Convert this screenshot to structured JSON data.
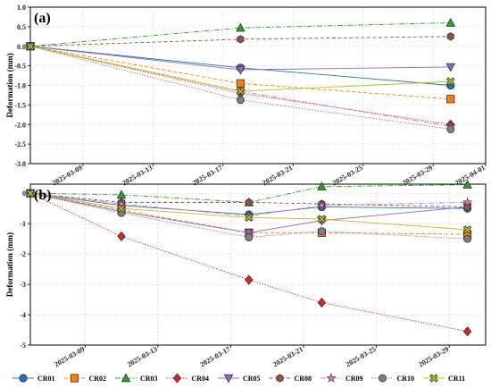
{
  "chart_data": [
    {
      "type": "line",
      "panel_label": "(a)",
      "ylabel": "Deformation (mm)",
      "xlabel": "",
      "ylim": [
        -3.0,
        1.0
      ],
      "yticks": [
        1.0,
        0.5,
        0.0,
        -0.5,
        -1.0,
        -1.5,
        -2.0,
        -2.5,
        -3.0
      ],
      "ytick_labels": [
        "1.0",
        "0.5",
        "0.0",
        "-0.5",
        "-1.0",
        "-1.5",
        "-2.0",
        "-2.5",
        "-3.0"
      ],
      "xlim": [
        "2025-03-06",
        "2025-04-01"
      ],
      "xticks": [
        "2025-03-09",
        "2025-03-13",
        "2025-03-17",
        "2025-03-21",
        "2025-03-25",
        "2025-03-29",
        "2025-04-01"
      ],
      "grid": true,
      "series": [
        {
          "name": "CR01",
          "x": [
            "2025-03-06",
            "2025-03-18",
            "2025-03-30"
          ],
          "y": [
            0.0,
            -0.55,
            -1.0
          ]
        },
        {
          "name": "CR02",
          "x": [
            "2025-03-06",
            "2025-03-18",
            "2025-03-30"
          ],
          "y": [
            0.0,
            -0.95,
            -1.35
          ]
        },
        {
          "name": "CR03",
          "x": [
            "2025-03-06",
            "2025-03-18",
            "2025-03-30"
          ],
          "y": [
            0.0,
            0.47,
            0.6
          ]
        },
        {
          "name": "CR04",
          "x": [
            "2025-03-06",
            "2025-03-18",
            "2025-03-30"
          ],
          "y": [
            0.0,
            -1.2,
            -2.0
          ]
        },
        {
          "name": "CR05",
          "x": [
            "2025-03-06",
            "2025-03-18",
            "2025-03-30"
          ],
          "y": [
            0.0,
            -0.6,
            -0.53
          ]
        },
        {
          "name": "CR08",
          "x": [
            "2025-03-06",
            "2025-03-18",
            "2025-03-30"
          ],
          "y": [
            0.0,
            0.18,
            0.25
          ]
        },
        {
          "name": "CR09",
          "x": [
            "2025-03-06",
            "2025-03-18",
            "2025-03-30"
          ],
          "y": [
            0.0,
            -1.15,
            -2.05
          ]
        },
        {
          "name": "CR10",
          "x": [
            "2025-03-06",
            "2025-03-18",
            "2025-03-30"
          ],
          "y": [
            0.0,
            -1.37,
            -2.12
          ]
        },
        {
          "name": "CR11",
          "x": [
            "2025-03-06",
            "2025-03-18",
            "2025-03-30"
          ],
          "y": [
            0.0,
            -1.15,
            -0.9
          ]
        }
      ]
    },
    {
      "type": "line",
      "panel_label": "(b)",
      "ylabel": "Deformation (mm)",
      "xlabel": "",
      "ylim": [
        -5,
        0.3
      ],
      "yticks": [
        0,
        -1,
        -2,
        -3,
        -4,
        -5
      ],
      "ytick_labels": [
        "0",
        "-1",
        "-2",
        "-3",
        "-4",
        "-5"
      ],
      "xlim": [
        "2025-03-06",
        "2025-03-31"
      ],
      "xticks": [
        "2025-03-09",
        "2025-03-13",
        "2025-03-17",
        "2025-03-21",
        "2025-03-25",
        "2025-03-29"
      ],
      "grid": true,
      "series": [
        {
          "name": "CR01",
          "x": [
            "2025-03-06",
            "2025-03-11",
            "2025-03-18",
            "2025-03-22",
            "2025-03-30"
          ],
          "y": [
            0.0,
            -0.4,
            -0.7,
            -0.45,
            -0.5
          ]
        },
        {
          "name": "CR02",
          "x": [
            "2025-03-06",
            "2025-03-11",
            "2025-03-18",
            "2025-03-22",
            "2025-03-30"
          ],
          "y": [
            0.0,
            -0.55,
            -1.3,
            -1.3,
            -1.35
          ]
        },
        {
          "name": "CR03",
          "x": [
            "2025-03-06",
            "2025-03-11",
            "2025-03-18",
            "2025-03-22",
            "2025-03-30"
          ],
          "y": [
            0.0,
            -0.05,
            -0.3,
            0.22,
            0.28
          ]
        },
        {
          "name": "CR04",
          "x": [
            "2025-03-06",
            "2025-03-11",
            "2025-03-18",
            "2025-03-22",
            "2025-03-30"
          ],
          "y": [
            0.0,
            -1.42,
            -2.85,
            -3.6,
            -4.55
          ]
        },
        {
          "name": "CR05",
          "x": [
            "2025-03-06",
            "2025-03-11",
            "2025-03-18",
            "2025-03-22",
            "2025-03-30"
          ],
          "y": [
            0.0,
            -0.6,
            -1.3,
            -0.9,
            -0.45
          ]
        },
        {
          "name": "CR08",
          "x": [
            "2025-03-06",
            "2025-03-11",
            "2025-03-18",
            "2025-03-22",
            "2025-03-30"
          ],
          "y": [
            0.0,
            -0.3,
            -0.3,
            -0.35,
            -0.45
          ]
        },
        {
          "name": "CR09",
          "x": [
            "2025-03-06",
            "2025-03-11",
            "2025-03-18",
            "2025-03-22",
            "2025-03-30"
          ],
          "y": [
            0.0,
            -0.35,
            -0.75,
            -0.4,
            -0.3
          ]
        },
        {
          "name": "CR10",
          "x": [
            "2025-03-06",
            "2025-03-11",
            "2025-03-18",
            "2025-03-22",
            "2025-03-30"
          ],
          "y": [
            0.0,
            -0.65,
            -1.45,
            -1.25,
            -1.5
          ]
        },
        {
          "name": "CR11",
          "x": [
            "2025-03-06",
            "2025-03-11",
            "2025-03-18",
            "2025-03-22",
            "2025-03-30"
          ],
          "y": [
            0.0,
            -0.5,
            -0.8,
            -0.85,
            -1.2
          ]
        }
      ]
    }
  ],
  "legend": {
    "placement": "bottom",
    "entries": [
      {
        "name": "CR01",
        "color": "#1f77b4",
        "marker": "circle",
        "dash": "solid"
      },
      {
        "name": "CR02",
        "color": "#ff7f0e",
        "marker": "square",
        "dash": "dashed"
      },
      {
        "name": "CR03",
        "color": "#2ca02c",
        "marker": "triangle-up",
        "dash": "dashdot"
      },
      {
        "name": "CR04",
        "color": "#d62728",
        "marker": "diamond",
        "dash": "dotted"
      },
      {
        "name": "CR05",
        "color": "#9467bd",
        "marker": "triangle-down",
        "dash": "solid"
      },
      {
        "name": "CR08",
        "color": "#8c564b",
        "marker": "hexagon",
        "dash": "dashed"
      },
      {
        "name": "CR09",
        "color": "#e377c2",
        "marker": "star",
        "dash": "dashdot"
      },
      {
        "name": "CR10",
        "color": "#7f7f7f",
        "marker": "octagon",
        "dash": "dotted"
      },
      {
        "name": "CR11",
        "color": "#bcbd22",
        "marker": "x-filled",
        "dash": "solid"
      }
    ]
  }
}
